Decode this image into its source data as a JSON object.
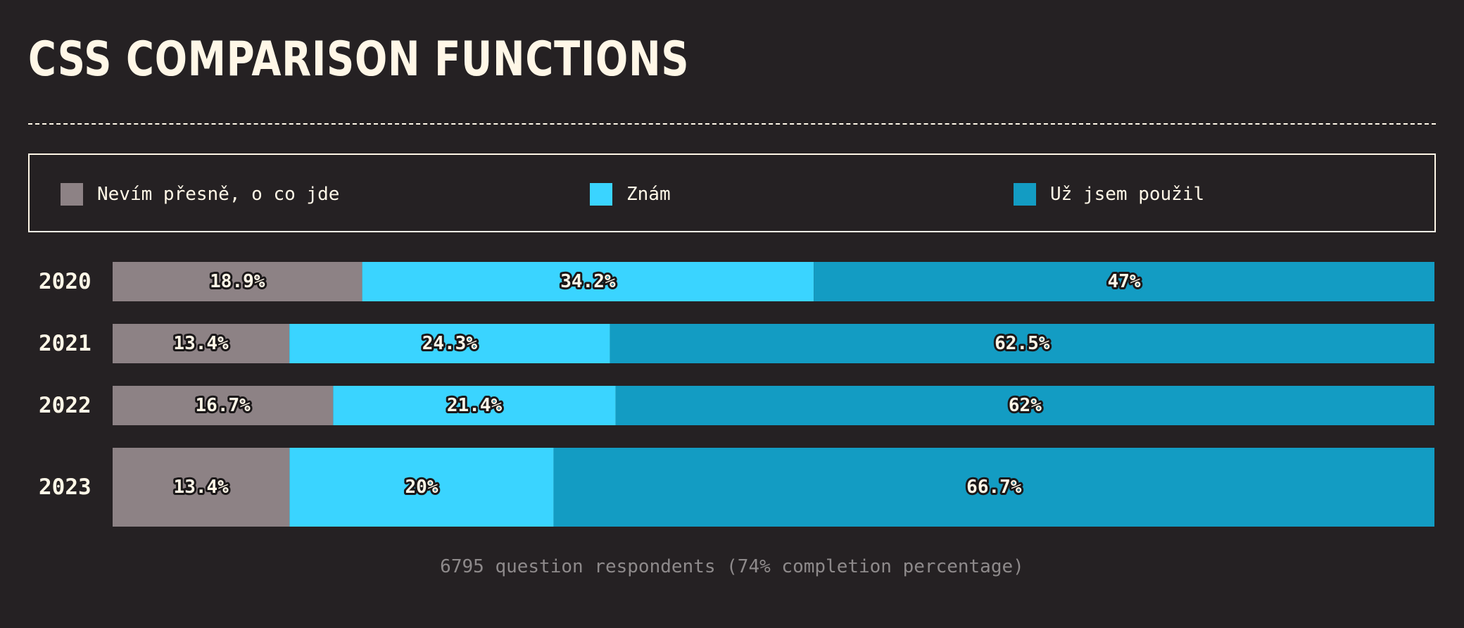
{
  "title": "CSS COMPARISON FUNCTIONS",
  "legend": [
    {
      "label": "Nevím přesně, o co jde",
      "color": "#8d8285"
    },
    {
      "label": "Znám",
      "color": "#3ad4ff"
    },
    {
      "label": "Už jsem použil",
      "color": "#139cc3"
    }
  ],
  "footnote": "6795 question respondents (74% completion percentage)",
  "chart_data": {
    "type": "bar",
    "orientation": "horizontal",
    "stacked": true,
    "title": "CSS COMPARISON FUNCTIONS",
    "categories": [
      "2020",
      "2021",
      "2022",
      "2023"
    ],
    "series": [
      {
        "name": "Nevím přesně, o co jde",
        "color": "#8d8285",
        "values": [
          18.9,
          13.4,
          16.7,
          13.4
        ],
        "labels": [
          "18.9%",
          "13.4%",
          "16.7%",
          "13.4%"
        ]
      },
      {
        "name": "Znám",
        "color": "#3ad4ff",
        "values": [
          34.2,
          24.3,
          21.4,
          20
        ],
        "labels": [
          "34.2%",
          "24.3%",
          "21.4%",
          "20%"
        ]
      },
      {
        "name": "Už jsem použil",
        "color": "#139cc3",
        "values": [
          47,
          62.5,
          62,
          66.7
        ],
        "labels": [
          "47%",
          "62.5%",
          "62%",
          "66.7%"
        ]
      }
    ],
    "xlim": [
      0,
      100
    ],
    "legend_position": "top",
    "grid": false
  }
}
